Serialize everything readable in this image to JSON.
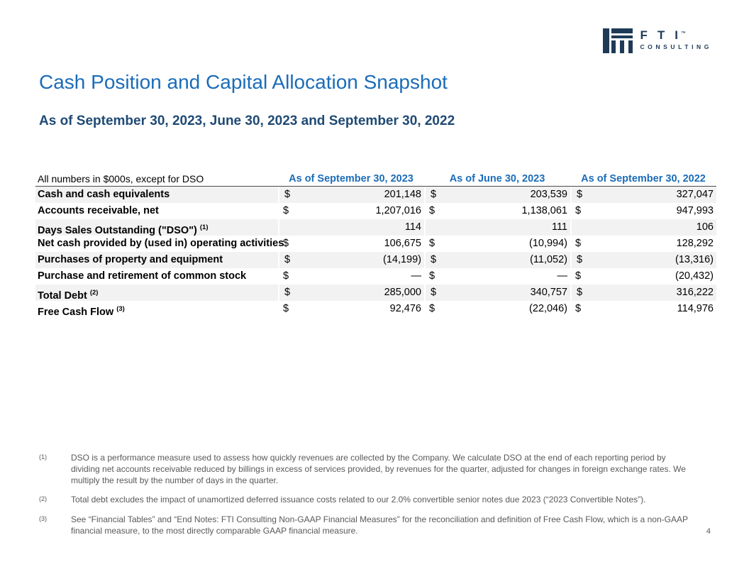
{
  "logo": {
    "letters": "FTI",
    "tm": "™",
    "sub": "CONSULTING",
    "color": "#1e3a56"
  },
  "title": "Cash Position and Capital Allocation Snapshot",
  "subtitle": "As of September 30, 2023, June 30, 2023 and September 30, 2022",
  "colors": {
    "title_blue": "#1b6cb8",
    "subtitle_navy": "#1f4a74",
    "band_gray": "#f2f2f2",
    "footnote_gray": "#595959"
  },
  "table": {
    "note": "All numbers in $000s, except for DSO",
    "columns": [
      "As of September 30, 2023",
      "As of June 30, 2023",
      "As of September 30, 2022"
    ],
    "rows": [
      {
        "label": "Cash and cash equivalents",
        "sup": "",
        "dollar": true,
        "values": [
          "201,148",
          "203,539",
          "327,047"
        ]
      },
      {
        "label": "Accounts receivable, net",
        "sup": "",
        "dollar": true,
        "values": [
          "1,207,016",
          "1,138,061",
          "947,993"
        ]
      },
      {
        "label": "Days Sales Outstanding (\"DSO\")",
        "sup": "(1)",
        "dollar": false,
        "values": [
          "114",
          "111",
          "106"
        ]
      },
      {
        "label": "Net cash provided by (used in) operating activities",
        "sup": "",
        "dollar": true,
        "values": [
          "106,675",
          "(10,994)",
          "128,292"
        ]
      },
      {
        "label": "Purchases of property and equipment",
        "sup": "",
        "dollar": true,
        "values": [
          "(14,199)",
          "(11,052)",
          "(13,316)"
        ]
      },
      {
        "label": "Purchase and retirement of common stock",
        "sup": "",
        "dollar": true,
        "values": [
          "—",
          "—",
          "(20,432)"
        ]
      },
      {
        "label": "Total Debt",
        "sup": "(2)",
        "dollar": true,
        "values": [
          "285,000",
          "340,757",
          "316,222"
        ]
      },
      {
        "label": "Free Cash Flow",
        "sup": "(3)",
        "dollar": true,
        "values": [
          "92,476",
          "(22,046)",
          "114,976"
        ]
      }
    ]
  },
  "footnotes": [
    {
      "marker": "(1)",
      "text": "DSO is a performance measure used to assess how quickly revenues are collected by the Company. We calculate DSO at the end of each reporting period by dividing net accounts receivable reduced by billings in excess of services provided, by revenues for the quarter, adjusted for changes in foreign exchange rates. We multiply the result by the number of days in the quarter."
    },
    {
      "marker": "(2)",
      "text": "Total debt excludes the impact of unamortized deferred issuance costs related to our 2.0% convertible senior notes due 2023 (“2023 Convertible Notes”)."
    },
    {
      "marker": "(3)",
      "text": "See “Financial Tables” and “End Notes: FTI Consulting Non-GAAP Financial Measures” for the reconciliation and definition of Free Cash Flow, which is a non-GAAP financial measure, to the most directly comparable GAAP financial measure."
    }
  ],
  "page_number": "4"
}
